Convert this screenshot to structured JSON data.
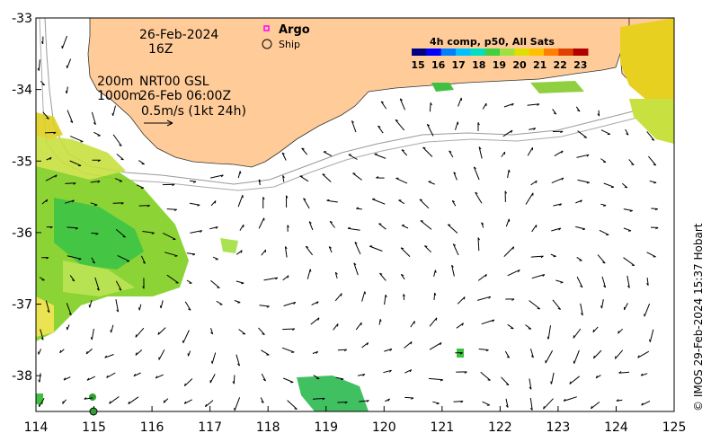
{
  "map": {
    "date": "26-Feb-2024",
    "time": "16Z",
    "depth_contour_1": "200m",
    "depth_contour_2": "1000m",
    "product": "NRT00 GSL",
    "product_time": "26-Feb 06:00Z",
    "scale_label": "0.5m/s (1kt 24h)",
    "credit": "© IMOS 29-Feb-2024 15:37 Hobart",
    "colors": {
      "land": "#FFCC99",
      "ocean": "#FFFFFF",
      "frame": "#000000"
    }
  },
  "legend": {
    "argo_label": "Argo",
    "ship_label": "Ship",
    "argo_color": "#FF00FF"
  },
  "colorbar": {
    "title": "4h comp, p50, All Sats",
    "ticks": [
      "15",
      "16",
      "17",
      "18",
      "19",
      "20",
      "21",
      "22",
      "23"
    ],
    "colors": [
      "#000080",
      "#0000FF",
      "#0080FF",
      "#00C0FF",
      "#00E0C0",
      "#40D040",
      "#A0E040",
      "#E0E000",
      "#FFC000",
      "#FF8000",
      "#E04000",
      "#B00000"
    ]
  },
  "axes": {
    "x_ticks": [
      "114",
      "115",
      "116",
      "117",
      "118",
      "119",
      "120",
      "121",
      "122",
      "123",
      "124",
      "125"
    ],
    "y_ticks": [
      "-33",
      "-34",
      "-35",
      "-36",
      "-37",
      "-38"
    ],
    "xlim": [
      114,
      125
    ],
    "ylim": [
      -38.5,
      -33
    ]
  }
}
